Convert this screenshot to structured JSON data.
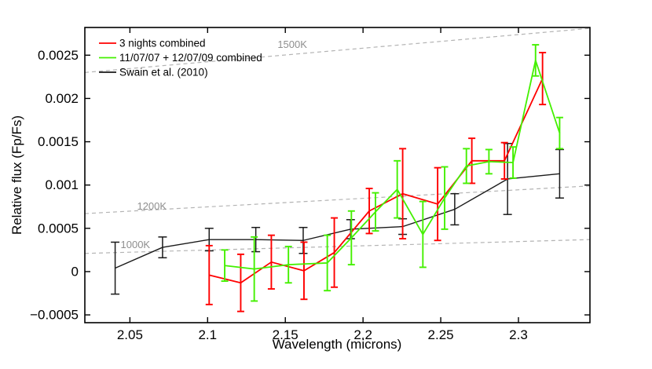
{
  "figure": {
    "background": "#ffffff",
    "axis_color": "#000000",
    "dashed_line_color": "#b3b3b3",
    "isotherm_label_color": "#8f8f8f"
  },
  "chart_data": {
    "type": "line",
    "title": "",
    "xlabel": "Wavelength (microns)",
    "ylabel": "Relative flux (Fp/Fs)",
    "xlim": [
      2.021,
      2.346
    ],
    "ylim": [
      -0.00059,
      0.00282
    ],
    "grid": false,
    "legend_position": "top-left-inside",
    "x_ticks": {
      "values": [
        2.05,
        2.1,
        2.15,
        2.2,
        2.25,
        2.3
      ],
      "labels": [
        "2.05",
        "2.1",
        "2.15",
        "2.2",
        "2.25",
        "2.3"
      ]
    },
    "y_ticks": {
      "values": [
        -0.0005,
        0,
        0.0005,
        0.001,
        0.0015,
        0.002,
        0.0025
      ],
      "labels": [
        "−0.0005",
        "0",
        "0.0005",
        "0.001",
        "0.0015",
        "0.002",
        "0.0025"
      ]
    },
    "series": [
      {
        "name": "Swain et al. (2010)",
        "color": "#1a1a1a",
        "line_width": 1.4,
        "cap_halfwidth": 5.5,
        "x": [
          2.0405,
          2.071,
          2.101,
          2.131,
          2.1615,
          2.192,
          2.2255,
          2.259,
          2.293,
          2.3265
        ],
        "y": [
          4e-05,
          0.00028,
          0.00037,
          0.00037,
          0.00036,
          0.00049,
          0.00052,
          0.00072,
          0.00107,
          0.00113
        ],
        "yerr": [
          0.0003,
          0.00012,
          0.00013,
          0.00014,
          0.00015,
          0.00011,
          9e-05,
          0.00018,
          0.00041,
          0.00028
        ]
      },
      {
        "name": "3 nights combined",
        "color": "#ff0000",
        "line_width": 1.8,
        "cap_halfwidth": 4.5,
        "x": [
          2.101,
          2.1213,
          2.141,
          2.162,
          2.1815,
          2.204,
          2.2255,
          2.248,
          2.27,
          2.291,
          2.3155
        ],
        "y": [
          -4e-05,
          -0.00013,
          0.00011,
          1e-05,
          0.00022,
          0.0007,
          0.0009,
          0.00078,
          0.00128,
          0.00128,
          0.00223
        ],
        "yerr": [
          0.00034,
          0.00033,
          0.00031,
          0.00033,
          0.0004,
          0.00026,
          0.00052,
          0.00042,
          0.00026,
          0.00021,
          0.0003
        ]
      },
      {
        "name": "11/07/07 + 12/07/09 combined",
        "color": "#44f000",
        "line_width": 1.8,
        "cap_halfwidth": 4.5,
        "x": [
          2.111,
          2.13,
          2.152,
          2.177,
          2.1925,
          2.208,
          2.222,
          2.2385,
          2.2525,
          2.2665,
          2.281,
          2.2965,
          2.311,
          2.3265
        ],
        "y": [
          7e-05,
          3e-05,
          8e-05,
          0.0001,
          0.00039,
          0.00069,
          0.00095,
          0.00043,
          0.00085,
          0.00122,
          0.00127,
          0.00126,
          0.00244,
          0.0016
        ],
        "yerr": [
          0.00018,
          0.00037,
          0.00021,
          0.00032,
          0.00031,
          0.00022,
          0.00033,
          0.00038,
          0.00036,
          0.0002,
          0.00014,
          0.00018,
          0.00018,
          0.00018
        ]
      }
    ],
    "legend_order": [
      "3 nights combined",
      "11/07/07 + 12/07/09 combined",
      "Swain et al. (2010)"
    ],
    "blackbody_lines": [
      {
        "label": "1500K",
        "x": [
          2.021,
          2.346
        ],
        "y": [
          0.0023,
          0.00281
        ],
        "label_pos": [
          2.1545,
          0.00262
        ]
      },
      {
        "label": "1200K",
        "x": [
          2.021,
          2.346
        ],
        "y": [
          0.00067,
          0.00099
        ],
        "label_pos": [
          2.0641,
          0.00075
        ]
      },
      {
        "label": "1000K",
        "x": [
          2.021,
          2.346
        ],
        "y": [
          0.00021,
          0.00037
        ],
        "label_pos": [
          2.0535,
          0.00031
        ]
      }
    ]
  }
}
